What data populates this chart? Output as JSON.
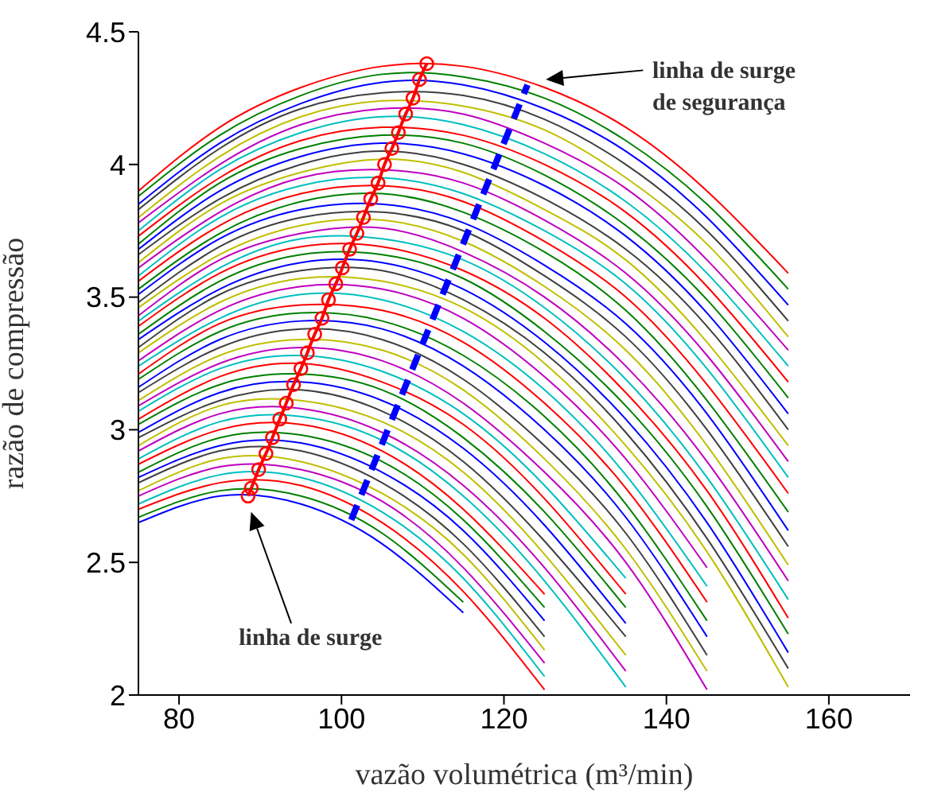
{
  "chart_data": {
    "type": "line",
    "xlabel": "vazão volumétrica (m³/min)",
    "ylabel": "razão de compressão",
    "xlim": [
      75,
      170
    ],
    "ylim": [
      2,
      4.5
    ],
    "xticks": [
      80,
      100,
      120,
      140,
      160
    ],
    "yticks": [
      2,
      2.5,
      3,
      3.5,
      4,
      4.5
    ],
    "x": [
      75,
      85,
      95,
      105,
      115,
      125,
      135,
      145,
      155
    ],
    "series": [
      {
        "color": "#ff0000",
        "values": [
          3.9,
          4.14,
          4.29,
          4.37,
          4.37,
          4.29,
          4.14,
          3.9,
          3.59
        ]
      },
      {
        "color": "#008000",
        "values": [
          3.88,
          4.11,
          4.26,
          4.34,
          4.33,
          4.25,
          4.09,
          3.85,
          3.53
        ]
      },
      {
        "color": "#0000ff",
        "values": [
          3.85,
          4.08,
          4.23,
          4.31,
          4.3,
          4.21,
          4.05,
          3.8,
          3.47
        ]
      },
      {
        "color": "#404040",
        "values": [
          3.83,
          4.06,
          4.21,
          4.27,
          4.26,
          4.17,
          4.0,
          3.75,
          3.41
        ]
      },
      {
        "color": "#bfbf00",
        "values": [
          3.8,
          4.03,
          4.18,
          4.24,
          4.22,
          4.13,
          3.95,
          3.7,
          3.35
        ]
      },
      {
        "color": "#bf00bf",
        "values": [
          3.78,
          4.0,
          4.15,
          4.21,
          4.19,
          4.08,
          3.91,
          3.64,
          3.3
        ]
      },
      {
        "color": "#00bfbf",
        "values": [
          3.75,
          3.98,
          4.12,
          4.18,
          4.15,
          4.04,
          3.86,
          3.59,
          3.24
        ]
      },
      {
        "color": "#ff0000",
        "values": [
          3.73,
          3.95,
          4.09,
          4.14,
          4.11,
          4.0,
          3.82,
          3.54,
          3.18
        ]
      },
      {
        "color": "#008000",
        "values": [
          3.7,
          3.93,
          4.06,
          4.11,
          4.08,
          3.96,
          3.77,
          3.49,
          3.12
        ]
      },
      {
        "color": "#0000ff",
        "values": [
          3.68,
          3.9,
          4.03,
          4.08,
          4.04,
          3.92,
          3.73,
          3.44,
          3.06
        ]
      },
      {
        "color": "#404040",
        "values": [
          3.66,
          3.87,
          4.0,
          4.05,
          4.0,
          3.87,
          3.68,
          3.39,
          3.0
        ]
      },
      {
        "color": "#bfbf00",
        "values": [
          3.63,
          3.85,
          3.97,
          4.02,
          3.97,
          3.83,
          3.64,
          3.33,
          2.94
        ]
      },
      {
        "color": "#bf00bf",
        "values": [
          3.61,
          3.82,
          3.95,
          3.98,
          3.93,
          3.79,
          3.59,
          3.28,
          2.88
        ]
      },
      {
        "color": "#00bfbf",
        "values": [
          3.58,
          3.8,
          3.92,
          3.95,
          3.89,
          3.75,
          3.55,
          3.23,
          2.82
        ]
      },
      {
        "color": "#ff0000",
        "values": [
          3.56,
          3.77,
          3.89,
          3.92,
          3.86,
          3.71,
          3.5,
          3.17,
          2.76
        ]
      },
      {
        "color": "#008000",
        "values": [
          3.53,
          3.74,
          3.86,
          3.89,
          3.82,
          3.67,
          3.45,
          3.11,
          2.69
        ]
      },
      {
        "color": "#0000ff",
        "values": [
          3.51,
          3.72,
          3.83,
          3.85,
          3.78,
          3.62,
          3.4,
          3.06,
          2.62
        ]
      },
      {
        "color": "#404040",
        "values": [
          3.48,
          3.69,
          3.8,
          3.82,
          3.75,
          3.58,
          3.35,
          3.0,
          2.56
        ]
      },
      {
        "color": "#bfbf00",
        "values": [
          3.46,
          3.66,
          3.77,
          3.79,
          3.71,
          3.54,
          3.3,
          2.94,
          2.49
        ]
      },
      {
        "color": "#bf00bf",
        "values": [
          3.43,
          3.64,
          3.74,
          3.76,
          3.67,
          3.5,
          3.24,
          2.88,
          2.43
        ]
      },
      {
        "color": "#00bfbf",
        "values": [
          3.41,
          3.61,
          3.72,
          3.72,
          3.64,
          3.46,
          3.19,
          2.82,
          2.36
        ]
      },
      {
        "color": "#ff0000",
        "values": [
          3.39,
          3.59,
          3.69,
          3.69,
          3.6,
          3.42,
          3.14,
          2.77,
          2.29
        ]
      },
      {
        "color": "#008000",
        "values": [
          3.36,
          3.56,
          3.66,
          3.66,
          3.57,
          3.37,
          3.09,
          2.71,
          2.23
        ]
      },
      {
        "color": "#0000ff",
        "values": [
          3.34,
          3.53,
          3.63,
          3.63,
          3.53,
          3.33,
          3.04,
          2.65,
          2.16
        ]
      },
      {
        "color": "#404040",
        "values": [
          3.31,
          3.51,
          3.6,
          3.6,
          3.49,
          3.29,
          2.99,
          2.59,
          2.1
        ]
      },
      {
        "color": "#bfbf00",
        "values": [
          3.29,
          3.48,
          3.57,
          3.56,
          3.46,
          3.25,
          2.94,
          2.54,
          2.03
        ]
      },
      {
        "color": "#bf00bf",
        "values": [
          3.26,
          3.45,
          3.54,
          3.53,
          3.42,
          3.2,
          2.89,
          2.48,
          null
        ]
      },
      {
        "color": "#00bfbf",
        "values": [
          3.24,
          3.42,
          3.51,
          3.49,
          3.37,
          3.15,
          2.83,
          2.41,
          null
        ]
      },
      {
        "color": "#ff0000",
        "values": [
          3.21,
          3.4,
          3.47,
          3.45,
          3.33,
          3.1,
          2.78,
          2.35,
          null
        ]
      },
      {
        "color": "#008000",
        "values": [
          3.19,
          3.37,
          3.44,
          3.41,
          3.28,
          3.05,
          2.72,
          2.28,
          null
        ]
      },
      {
        "color": "#0000ff",
        "values": [
          3.16,
          3.34,
          3.41,
          3.38,
          3.24,
          3.0,
          2.67,
          2.22,
          null
        ]
      },
      {
        "color": "#404040",
        "values": [
          3.14,
          3.31,
          3.38,
          3.34,
          3.19,
          2.94,
          2.61,
          2.15,
          null
        ]
      },
      {
        "color": "#bfbf00",
        "values": [
          3.11,
          3.28,
          3.34,
          3.3,
          3.15,
          2.89,
          2.55,
          2.09,
          null
        ]
      },
      {
        "color": "#bf00bf",
        "values": [
          3.09,
          3.25,
          3.31,
          3.26,
          3.1,
          2.84,
          2.5,
          2.02,
          null
        ]
      },
      {
        "color": "#00bfbf",
        "values": [
          3.07,
          3.23,
          3.28,
          3.22,
          3.06,
          2.79,
          2.44,
          null,
          null
        ]
      },
      {
        "color": "#ff0000",
        "values": [
          3.04,
          3.2,
          3.25,
          3.18,
          3.02,
          2.74,
          2.38,
          null,
          null
        ]
      },
      {
        "color": "#008000",
        "values": [
          3.02,
          3.17,
          3.21,
          3.15,
          2.97,
          2.69,
          2.33,
          null,
          null
        ]
      },
      {
        "color": "#0000ff",
        "values": [
          2.99,
          3.14,
          3.18,
          3.11,
          2.93,
          2.64,
          2.27,
          null,
          null
        ]
      },
      {
        "color": "#404040",
        "values": [
          2.97,
          3.11,
          3.15,
          3.07,
          2.88,
          2.58,
          2.22,
          null,
          null
        ]
      },
      {
        "color": "#bfbf00",
        "values": [
          2.94,
          3.09,
          3.11,
          3.03,
          2.84,
          2.53,
          2.15,
          null,
          null
        ]
      },
      {
        "color": "#bf00bf",
        "values": [
          2.92,
          3.06,
          3.08,
          2.99,
          2.79,
          2.48,
          2.09,
          null,
          null
        ]
      },
      {
        "color": "#00bfbf",
        "values": [
          2.89,
          3.03,
          3.05,
          2.96,
          2.75,
          2.43,
          2.03,
          null,
          null
        ]
      },
      {
        "color": "#ff0000",
        "values": [
          2.87,
          3.0,
          3.02,
          2.92,
          2.7,
          2.38,
          null,
          null,
          null
        ]
      },
      {
        "color": "#008000",
        "values": [
          2.84,
          2.97,
          2.98,
          2.88,
          2.66,
          2.33,
          null,
          null,
          null
        ]
      },
      {
        "color": "#0000ff",
        "values": [
          2.82,
          2.94,
          2.95,
          2.84,
          2.62,
          2.28,
          null,
          null,
          null
        ]
      },
      {
        "color": "#404040",
        "values": [
          2.8,
          2.92,
          2.92,
          2.8,
          2.57,
          2.22,
          null,
          null,
          null
        ]
      },
      {
        "color": "#bfbf00",
        "values": [
          2.77,
          2.89,
          2.88,
          2.76,
          2.53,
          2.17,
          null,
          null,
          null
        ]
      },
      {
        "color": "#bf00bf",
        "values": [
          2.75,
          2.86,
          2.85,
          2.73,
          2.48,
          2.12,
          null,
          null,
          null
        ]
      },
      {
        "color": "#00bfbf",
        "values": [
          2.72,
          2.83,
          2.82,
          2.69,
          2.44,
          2.07,
          null,
          null,
          null
        ]
      },
      {
        "color": "#ff0000",
        "values": [
          2.7,
          2.8,
          2.79,
          2.65,
          2.39,
          2.02,
          null,
          null,
          null
        ]
      },
      {
        "color": "#008000",
        "values": [
          2.67,
          2.77,
          2.75,
          2.61,
          2.35,
          null,
          null,
          null,
          null
        ]
      },
      {
        "color": "#0000ff",
        "values": [
          2.65,
          2.75,
          2.72,
          2.57,
          2.31,
          null,
          null,
          null,
          null
        ]
      },
      {
        "color": "#ff0000",
        "marker": "circle",
        "x": [
          110.5,
          109.6,
          108.8,
          107.9,
          107.0,
          106.2,
          105.3,
          104.5,
          103.6,
          102.7,
          101.9,
          101.0,
          100.1,
          99.3,
          98.4,
          97.6,
          96.7,
          95.8,
          95.0,
          94.1,
          93.2,
          92.4,
          91.5,
          90.7,
          89.8,
          88.9,
          88.5
        ],
        "values": [
          4.38,
          4.32,
          4.25,
          4.19,
          4.12,
          4.06,
          4.0,
          3.93,
          3.87,
          3.8,
          3.74,
          3.68,
          3.61,
          3.55,
          3.49,
          3.42,
          3.36,
          3.29,
          3.23,
          3.17,
          3.1,
          3.04,
          2.97,
          2.91,
          2.85,
          2.78,
          2.75
        ]
      },
      {
        "color": "#0000ff",
        "line_style": "dashed",
        "x": [
          101.2,
          122.9
        ],
        "values": [
          2.66,
          4.3
        ]
      }
    ],
    "annotations": [
      "linha de surge",
      "linha de surge de segurança"
    ]
  }
}
